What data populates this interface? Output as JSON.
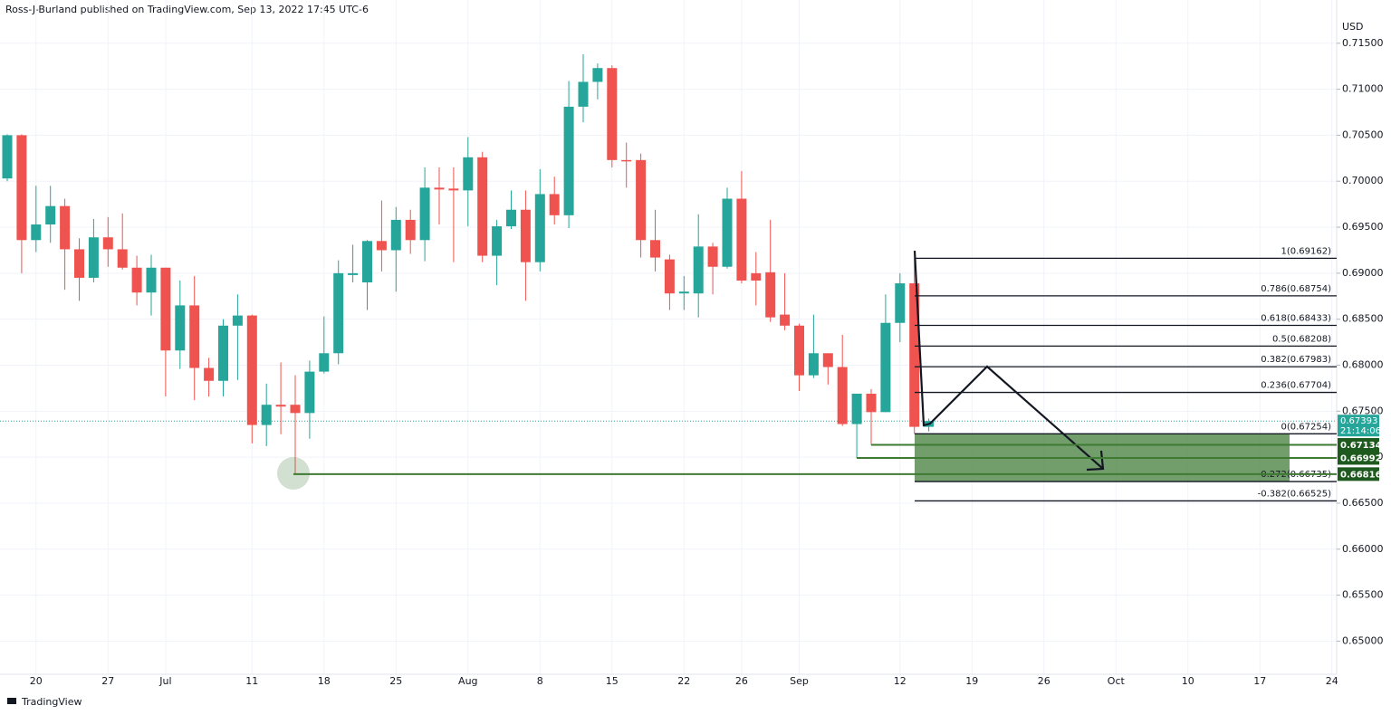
{
  "header": {
    "text": "Ross-J-Burland published on TradingView.com, Sep 13, 2022 17:45 UTC-6"
  },
  "footer": {
    "brand": "TradingView"
  },
  "chart_data": {
    "type": "candlestick",
    "categories": [
      null,
      null,
      "20",
      null,
      null,
      null,
      null,
      "27",
      null,
      null,
      null,
      "Jul",
      null,
      null,
      null,
      null,
      null,
      "11",
      null,
      null,
      null,
      null,
      "18",
      null,
      null,
      null,
      null,
      "25",
      null,
      null,
      null,
      null,
      "Aug",
      null,
      null,
      null,
      null,
      "8",
      null,
      null,
      null,
      null,
      "15",
      null,
      null,
      null,
      null,
      "22",
      null,
      null,
      null,
      "26",
      null,
      null,
      null,
      "Sep",
      null,
      null,
      null,
      null,
      null,
      null,
      "12",
      null,
      null,
      null,
      null,
      "19",
      null,
      null,
      null,
      null,
      "26",
      null,
      null,
      null,
      null,
      "Oct",
      null,
      null,
      null,
      null,
      "10",
      null,
      null,
      null,
      null,
      "17",
      null,
      null,
      null,
      null,
      "24"
    ],
    "open": [
      0.7003,
      0.705,
      0.6936,
      0.6953,
      0.6973,
      0.6926,
      0.6895,
      0.6939,
      0.6926,
      0.6906,
      0.6879,
      0.6906,
      0.6816,
      0.6865,
      0.6797,
      0.6783,
      0.6843,
      0.6854,
      0.6735,
      0.6757,
      0.6757,
      0.6748,
      0.6793,
      0.6813,
      0.6898,
      0.689,
      0.6935,
      0.6925,
      0.6958,
      0.6936,
      0.6993,
      0.6992,
      0.699,
      0.7026,
      0.6919,
      0.6951,
      0.6969,
      0.6912,
      0.6986,
      0.6963,
      0.7081,
      0.7108,
      0.7123,
      0.7023,
      0.7023,
      0.6936,
      0.6915,
      0.6878,
      0.6878,
      0.6929,
      0.6907,
      0.6981,
      0.69,
      0.6901,
      0.6855,
      0.6843,
      0.6789,
      0.6813,
      0.6798,
      0.6736,
      0.6769,
      0.6749,
      0.6846,
      0.6889,
      0.6733,
      null,
      null,
      null,
      null,
      null,
      null,
      null,
      null,
      null,
      null,
      null,
      null,
      null,
      null,
      null,
      null,
      null,
      null,
      null,
      null,
      null,
      null,
      null,
      null,
      null,
      null,
      null,
      null
    ],
    "high": [
      0.7051,
      0.7051,
      0.6995,
      0.6995,
      0.6981,
      0.6938,
      0.6959,
      0.6961,
      0.6965,
      0.6919,
      0.692,
      0.6906,
      0.6892,
      0.6897,
      0.6808,
      0.685,
      0.6877,
      0.6855,
      0.678,
      0.6803,
      0.6789,
      0.6805,
      0.6853,
      0.6914,
      0.6931,
      0.6936,
      0.6979,
      0.6972,
      0.6969,
      0.7015,
      0.7015,
      0.7015,
      0.7048,
      0.7032,
      0.6958,
      0.699,
      0.699,
      0.7013,
      0.7005,
      0.7109,
      0.7138,
      0.7128,
      0.7126,
      0.7042,
      0.703,
      0.6969,
      0.692,
      0.6897,
      0.6964,
      0.6933,
      0.6993,
      0.7011,
      0.6923,
      0.6958,
      0.69,
      0.6845,
      0.6855,
      0.6813,
      0.6833,
      0.6769,
      0.6774,
      0.6877,
      0.69,
      0.69162,
      0.6742,
      null,
      null,
      null,
      null,
      null,
      null,
      null,
      null,
      null,
      null,
      null,
      null,
      null,
      null,
      null,
      null,
      null,
      null,
      null,
      null,
      null,
      null,
      null,
      null,
      null,
      null,
      null,
      null
    ],
    "low": [
      0.7,
      0.69,
      0.6923,
      0.6933,
      0.6882,
      0.687,
      0.689,
      0.6907,
      0.6904,
      0.6865,
      0.6854,
      0.6766,
      0.6796,
      0.6762,
      0.6766,
      0.6766,
      0.6784,
      0.6715,
      0.6712,
      0.6725,
      0.66816,
      0.672,
      0.6791,
      0.6801,
      0.689,
      0.686,
      0.6902,
      0.688,
      0.6921,
      0.6913,
      0.6953,
      0.6912,
      0.6951,
      0.6912,
      0.6887,
      0.6948,
      0.687,
      0.6902,
      0.6953,
      0.6949,
      0.7064,
      0.7089,
      0.7015,
      0.6993,
      0.6917,
      0.6902,
      0.686,
      0.686,
      0.6852,
      0.6877,
      0.6905,
      0.6889,
      0.6865,
      0.6847,
      0.6838,
      0.6772,
      0.6786,
      0.6779,
      0.6734,
      0.66992,
      0.67134,
      0.6749,
      0.6825,
      0.67254,
      0.6728,
      null,
      null,
      null,
      null,
      null,
      null,
      null,
      null,
      null,
      null,
      null,
      null,
      null,
      null,
      null,
      null,
      null,
      null,
      null,
      null,
      null,
      null,
      null,
      null,
      null,
      null,
      null,
      null
    ],
    "close": [
      0.705,
      0.6936,
      0.6953,
      0.6973,
      0.6926,
      0.6895,
      0.6939,
      0.6926,
      0.6906,
      0.6879,
      0.6906,
      0.6816,
      0.6865,
      0.6797,
      0.6783,
      0.6843,
      0.6854,
      0.6735,
      0.6757,
      0.6755,
      0.6748,
      0.6793,
      0.6813,
      0.69,
      0.69,
      0.6935,
      0.6925,
      0.6958,
      0.6936,
      0.6993,
      0.6991,
      0.699,
      0.7026,
      0.6919,
      0.6951,
      0.6969,
      0.6912,
      0.6986,
      0.6963,
      0.7081,
      0.7108,
      0.7123,
      0.7023,
      0.7022,
      0.6936,
      0.6917,
      0.6878,
      0.688,
      0.6929,
      0.6907,
      0.6981,
      0.6892,
      0.6892,
      0.6852,
      0.6843,
      0.6789,
      0.6813,
      0.6798,
      0.6736,
      0.6769,
      0.6749,
      0.6846,
      0.6889,
      0.6733,
      0.67393,
      null,
      null,
      null,
      null,
      null,
      null,
      null,
      null,
      null,
      null,
      null,
      null,
      null,
      null,
      null,
      null,
      null,
      null,
      null,
      null,
      null,
      null,
      null,
      null,
      null,
      null,
      null,
      null
    ],
    "up_color": "#26a69a",
    "down_color": "#ef5350",
    "y_unit": "USD",
    "ylim": [
      0.6464,
      0.7197
    ],
    "yticks": [
      {
        "value": 0.65,
        "label": "0.65000"
      },
      {
        "value": 0.655,
        "label": "0.65500"
      },
      {
        "value": 0.66,
        "label": "0.66000"
      },
      {
        "value": 0.665,
        "label": "0.66500"
      },
      {
        "value": 0.67,
        "label": "0.67000"
      },
      {
        "value": 0.675,
        "label": "0.67500"
      },
      {
        "value": 0.68,
        "label": "0.68000"
      },
      {
        "value": 0.685,
        "label": "0.68500"
      },
      {
        "value": 0.69,
        "label": "0.69000"
      },
      {
        "value": 0.695,
        "label": "0.69500"
      },
      {
        "value": 0.7,
        "label": "0.70000"
      },
      {
        "value": 0.705,
        "label": "0.70500"
      },
      {
        "value": 0.71,
        "label": "0.71000"
      },
      {
        "value": 0.715,
        "label": "0.71500"
      }
    ],
    "grid": true,
    "last_price": 0.67393,
    "countdown": "21:14:06",
    "levels": [
      0.67134,
      0.66992,
      0.66816
    ],
    "level_color": "#3f7a33",
    "fib_levels": [
      {
        "value": 0.69162,
        "label": "1(0.69162)"
      },
      {
        "value": 0.68754,
        "label": "0.786(0.68754)"
      },
      {
        "value": 0.68433,
        "label": "0.618(0.68433)"
      },
      {
        "value": 0.68208,
        "label": "0.5(0.68208)"
      },
      {
        "value": 0.67983,
        "label": "0.382(0.67983)"
      },
      {
        "value": 0.67704,
        "label": "0.236(0.67704)"
      },
      {
        "value": 0.67254,
        "label": "0(0.67254)"
      },
      {
        "value": 0.66735,
        "label": "-0.272(0.66735)"
      },
      {
        "value": 0.66525,
        "label": "-0.382(0.66525)"
      }
    ]
  }
}
